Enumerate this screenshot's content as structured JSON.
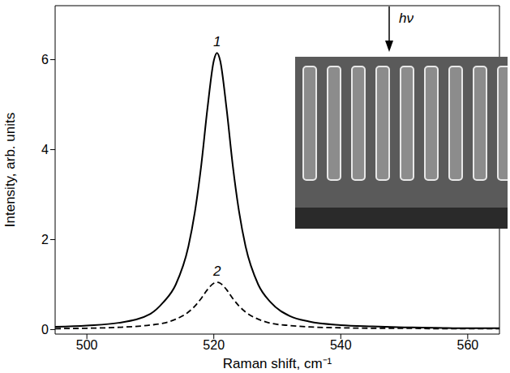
{
  "chart_data": {
    "type": "line",
    "xlabel": "Raman shift, cm⁻¹",
    "ylabel": "Intensity, arb. units",
    "x": [
      495,
      500,
      505,
      510,
      512,
      514,
      516,
      517,
      518,
      519,
      520,
      520.5,
      521,
      522,
      523,
      524,
      525,
      527,
      529,
      532,
      535,
      540,
      545,
      550,
      555,
      560,
      565
    ],
    "series": [
      {
        "name": "1",
        "color": "#000000",
        "line_style": "solid",
        "values": [
          0.06,
          0.09,
          0.15,
          0.35,
          0.6,
          1.0,
          1.85,
          2.6,
          3.63,
          4.92,
          5.98,
          6.15,
          5.98,
          4.92,
          3.63,
          2.6,
          1.85,
          1.0,
          0.6,
          0.3,
          0.18,
          0.1,
          0.07,
          0.05,
          0.04,
          0.03,
          0.03
        ]
      },
      {
        "name": "2",
        "color": "#000000",
        "line_style": "dashed",
        "values": [
          0.02,
          0.03,
          0.05,
          0.1,
          0.14,
          0.23,
          0.39,
          0.52,
          0.69,
          0.89,
          1.03,
          1.05,
          1.03,
          0.89,
          0.69,
          0.52,
          0.39,
          0.23,
          0.14,
          0.09,
          0.06,
          0.04,
          0.03,
          0.03,
          0.02,
          0.02,
          0.02
        ]
      }
    ],
    "xlim": [
      495,
      565
    ],
    "ylim": [
      -0.1,
      7.2
    ],
    "xticks": [
      500,
      520,
      540,
      560
    ],
    "yticks": [
      0,
      2,
      4,
      6
    ],
    "grid": false,
    "annotations": [
      "hν"
    ]
  }
}
